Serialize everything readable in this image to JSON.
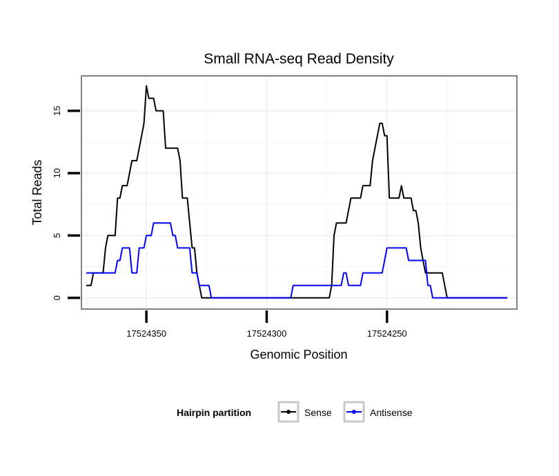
{
  "chart_data": {
    "type": "line",
    "title": "Small RNA-seq Read Density",
    "xlabel": "Genomic Position",
    "ylabel": "Total Reads",
    "xlim": [
      17524377,
      17524196
    ],
    "ylim": [
      -0.9,
      17.8
    ],
    "x_reversed": true,
    "grid": true,
    "x_ticks": [
      17524350,
      17524300,
      17524250
    ],
    "x_tick_labels": [
      "17524350",
      "17524300",
      "17524250"
    ],
    "y_ticks": [
      0,
      5,
      10,
      15
    ],
    "y_tick_labels": [
      "0",
      "5",
      "10",
      "15"
    ],
    "legend": {
      "title": "Hairpin partition",
      "position": "bottom",
      "entries": [
        "Sense",
        "Antisense"
      ]
    },
    "series": [
      {
        "name": "Sense",
        "color": "#000000",
        "x": [
          17524375,
          17524373,
          17524372,
          17524371,
          17524370,
          17524369,
          17524368,
          17524367,
          17524366,
          17524365,
          17524364,
          17524363,
          17524362,
          17524361,
          17524360,
          17524359,
          17524358,
          17524357,
          17524356,
          17524355,
          17524354,
          17524353,
          17524352,
          17524351,
          17524350,
          17524349,
          17524348,
          17524347,
          17524346,
          17524345,
          17524344,
          17524343,
          17524342,
          17524341,
          17524340,
          17524339,
          17524338,
          17524337,
          17524336,
          17524335,
          17524334,
          17524333,
          17524332,
          17524331,
          17524330,
          17524329,
          17524328,
          17524327,
          17524326,
          17524325,
          17524324,
          17524300,
          17524275,
          17524274,
          17524273,
          17524272,
          17524271,
          17524270,
          17524269,
          17524268,
          17524267,
          17524266,
          17524265,
          17524264,
          17524263,
          17524262,
          17524261,
          17524260,
          17524259,
          17524258,
          17524257,
          17524256,
          17524255,
          17524254,
          17524253,
          17524252,
          17524251,
          17524250,
          17524249,
          17524248,
          17524247,
          17524246,
          17524245,
          17524244,
          17524243,
          17524242,
          17524241,
          17524240,
          17524239,
          17524238,
          17524237,
          17524236,
          17524235,
          17524234,
          17524233,
          17524232,
          17524231,
          17524230,
          17524229,
          17524228,
          17524227,
          17524226,
          17524225,
          17524224,
          17524223,
          17524222,
          17524221,
          17524220,
          17524219,
          17524218,
          17524217,
          17524200
        ],
        "values": [
          1,
          1,
          2,
          2,
          2,
          2,
          2,
          4,
          5,
          5,
          5,
          5,
          8,
          8,
          9,
          9,
          9,
          10,
          11,
          11,
          11,
          12,
          13,
          14,
          17,
          16,
          16,
          16,
          15,
          15,
          15,
          15,
          12,
          12,
          12,
          12,
          12,
          12,
          11,
          8,
          8,
          8,
          6,
          4,
          4,
          2,
          1,
          0,
          0,
          0,
          0,
          0,
          0,
          0,
          1,
          5,
          6,
          6,
          6,
          6,
          6,
          7,
          8,
          8,
          8,
          8,
          8,
          9,
          9,
          9,
          9,
          11,
          12,
          13,
          14,
          14,
          13,
          13,
          8,
          8,
          8,
          8,
          8,
          9,
          8,
          8,
          8,
          8,
          7,
          7,
          6,
          4,
          3,
          2,
          2,
          2,
          2,
          2,
          2,
          2,
          2,
          1,
          0,
          0,
          0,
          0,
          0,
          0,
          0,
          0,
          0,
          0
        ]
      },
      {
        "name": "Antisense",
        "color": "#0000ff",
        "x": [
          17524375,
          17524363,
          17524362,
          17524361,
          17524360,
          17524357,
          17524356,
          17524355,
          17524354,
          17524353,
          17524352,
          17524351,
          17524350,
          17524349,
          17524348,
          17524347,
          17524346,
          17524345,
          17524344,
          17524343,
          17524342,
          17524341,
          17524340,
          17524339,
          17524338,
          17524337,
          17524336,
          17524335,
          17524334,
          17524333,
          17524332,
          17524331,
          17524330,
          17524329,
          17524328,
          17524327,
          17524326,
          17524325,
          17524324,
          17524323,
          17524322,
          17524290,
          17524289,
          17524288,
          17524270,
          17524269,
          17524268,
          17524267,
          17524266,
          17524265,
          17524264,
          17524263,
          17524262,
          17524261,
          17524260,
          17524259,
          17524258,
          17524257,
          17524256,
          17524255,
          17524254,
          17524253,
          17524252,
          17524251,
          17524250,
          17524249,
          17524248,
          17524247,
          17524246,
          17524245,
          17524244,
          17524243,
          17524242,
          17524241,
          17524240,
          17524239,
          17524238,
          17524237,
          17524236,
          17524235,
          17524234,
          17524233,
          17524232,
          17524231,
          17524230,
          17524229,
          17524200
        ],
        "values": [
          2,
          2,
          3,
          3,
          4,
          4,
          2,
          2,
          2,
          4,
          4,
          4,
          5,
          5,
          5,
          6,
          6,
          6,
          6,
          6,
          6,
          6,
          6,
          5,
          5,
          4,
          4,
          4,
          4,
          4,
          4,
          2,
          2,
          2,
          1,
          1,
          1,
          1,
          1,
          0,
          0,
          0,
          1,
          1,
          1,
          1,
          2,
          2,
          1,
          1,
          1,
          1,
          1,
          1,
          2,
          2,
          2,
          2,
          2,
          2,
          2,
          2,
          2,
          3,
          4,
          4,
          4,
          4,
          4,
          4,
          4,
          4,
          4,
          3,
          3,
          3,
          3,
          3,
          3,
          3,
          3,
          1,
          1,
          0,
          0,
          0,
          0
        ]
      }
    ]
  }
}
